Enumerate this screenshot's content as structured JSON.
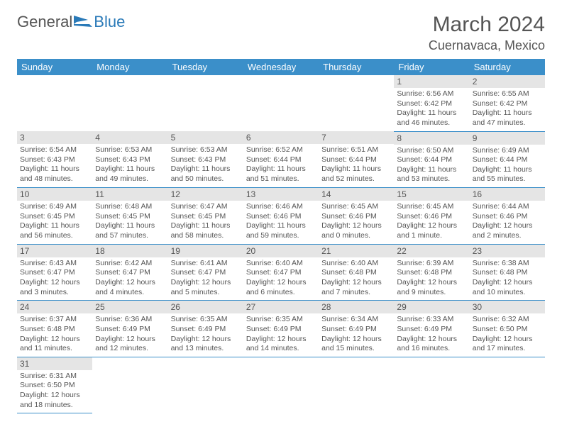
{
  "logo": {
    "text1": "General",
    "text2": "Blue"
  },
  "header": {
    "month_title": "March 2024",
    "location": "Cuernavaca, Mexico"
  },
  "weekdays": [
    "Sunday",
    "Monday",
    "Tuesday",
    "Wednesday",
    "Thursday",
    "Friday",
    "Saturday"
  ],
  "colors": {
    "header_bg": "#3b8fc9",
    "header_text": "#ffffff",
    "daynum_bg": "#e5e5e5",
    "border": "#3b8fc9",
    "text": "#555555",
    "logo_blue": "#2a7ab8"
  },
  "weeks": [
    [
      null,
      null,
      null,
      null,
      null,
      {
        "n": "1",
        "sr": "6:56 AM",
        "ss": "6:42 PM",
        "dl": "11 hours and 46 minutes."
      },
      {
        "n": "2",
        "sr": "6:55 AM",
        "ss": "6:42 PM",
        "dl": "11 hours and 47 minutes."
      }
    ],
    [
      {
        "n": "3",
        "sr": "6:54 AM",
        "ss": "6:43 PM",
        "dl": "11 hours and 48 minutes."
      },
      {
        "n": "4",
        "sr": "6:53 AM",
        "ss": "6:43 PM",
        "dl": "11 hours and 49 minutes."
      },
      {
        "n": "5",
        "sr": "6:53 AM",
        "ss": "6:43 PM",
        "dl": "11 hours and 50 minutes."
      },
      {
        "n": "6",
        "sr": "6:52 AM",
        "ss": "6:44 PM",
        "dl": "11 hours and 51 minutes."
      },
      {
        "n": "7",
        "sr": "6:51 AM",
        "ss": "6:44 PM",
        "dl": "11 hours and 52 minutes."
      },
      {
        "n": "8",
        "sr": "6:50 AM",
        "ss": "6:44 PM",
        "dl": "11 hours and 53 minutes."
      },
      {
        "n": "9",
        "sr": "6:49 AM",
        "ss": "6:44 PM",
        "dl": "11 hours and 55 minutes."
      }
    ],
    [
      {
        "n": "10",
        "sr": "6:49 AM",
        "ss": "6:45 PM",
        "dl": "11 hours and 56 minutes."
      },
      {
        "n": "11",
        "sr": "6:48 AM",
        "ss": "6:45 PM",
        "dl": "11 hours and 57 minutes."
      },
      {
        "n": "12",
        "sr": "6:47 AM",
        "ss": "6:45 PM",
        "dl": "11 hours and 58 minutes."
      },
      {
        "n": "13",
        "sr": "6:46 AM",
        "ss": "6:46 PM",
        "dl": "11 hours and 59 minutes."
      },
      {
        "n": "14",
        "sr": "6:45 AM",
        "ss": "6:46 PM",
        "dl": "12 hours and 0 minutes."
      },
      {
        "n": "15",
        "sr": "6:45 AM",
        "ss": "6:46 PM",
        "dl": "12 hours and 1 minute."
      },
      {
        "n": "16",
        "sr": "6:44 AM",
        "ss": "6:46 PM",
        "dl": "12 hours and 2 minutes."
      }
    ],
    [
      {
        "n": "17",
        "sr": "6:43 AM",
        "ss": "6:47 PM",
        "dl": "12 hours and 3 minutes."
      },
      {
        "n": "18",
        "sr": "6:42 AM",
        "ss": "6:47 PM",
        "dl": "12 hours and 4 minutes."
      },
      {
        "n": "19",
        "sr": "6:41 AM",
        "ss": "6:47 PM",
        "dl": "12 hours and 5 minutes."
      },
      {
        "n": "20",
        "sr": "6:40 AM",
        "ss": "6:47 PM",
        "dl": "12 hours and 6 minutes."
      },
      {
        "n": "21",
        "sr": "6:40 AM",
        "ss": "6:48 PM",
        "dl": "12 hours and 7 minutes."
      },
      {
        "n": "22",
        "sr": "6:39 AM",
        "ss": "6:48 PM",
        "dl": "12 hours and 9 minutes."
      },
      {
        "n": "23",
        "sr": "6:38 AM",
        "ss": "6:48 PM",
        "dl": "12 hours and 10 minutes."
      }
    ],
    [
      {
        "n": "24",
        "sr": "6:37 AM",
        "ss": "6:48 PM",
        "dl": "12 hours and 11 minutes."
      },
      {
        "n": "25",
        "sr": "6:36 AM",
        "ss": "6:49 PM",
        "dl": "12 hours and 12 minutes."
      },
      {
        "n": "26",
        "sr": "6:35 AM",
        "ss": "6:49 PM",
        "dl": "12 hours and 13 minutes."
      },
      {
        "n": "27",
        "sr": "6:35 AM",
        "ss": "6:49 PM",
        "dl": "12 hours and 14 minutes."
      },
      {
        "n": "28",
        "sr": "6:34 AM",
        "ss": "6:49 PM",
        "dl": "12 hours and 15 minutes."
      },
      {
        "n": "29",
        "sr": "6:33 AM",
        "ss": "6:49 PM",
        "dl": "12 hours and 16 minutes."
      },
      {
        "n": "30",
        "sr": "6:32 AM",
        "ss": "6:50 PM",
        "dl": "12 hours and 17 minutes."
      }
    ],
    [
      {
        "n": "31",
        "sr": "6:31 AM",
        "ss": "6:50 PM",
        "dl": "12 hours and 18 minutes."
      },
      null,
      null,
      null,
      null,
      null,
      null
    ]
  ],
  "labels": {
    "sunrise_prefix": "Sunrise: ",
    "sunset_prefix": "Sunset: ",
    "daylight_prefix": "Daylight: "
  }
}
